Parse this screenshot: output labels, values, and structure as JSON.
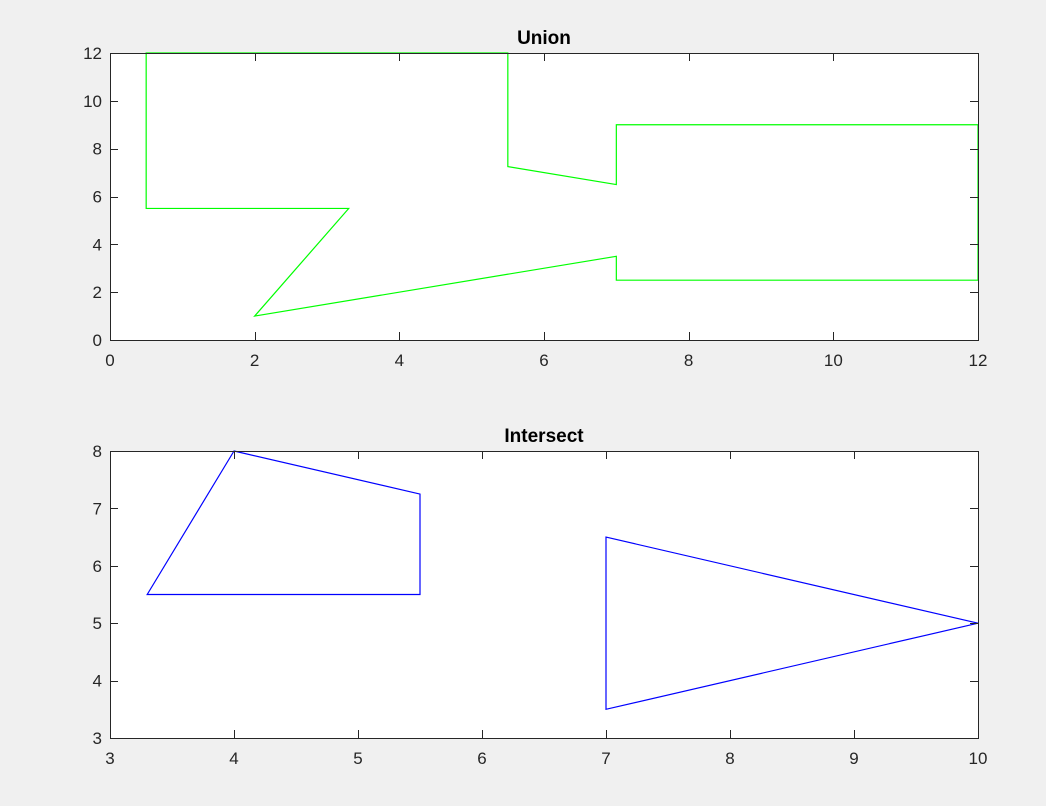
{
  "figure": {
    "background": "#f0f0f0"
  },
  "chart_data": [
    {
      "type": "line",
      "title": "Union",
      "xlabel": "",
      "ylabel": "",
      "xlim": [
        0,
        12
      ],
      "ylim": [
        0,
        12
      ],
      "xticks": [
        0,
        2,
        4,
        6,
        8,
        10,
        12
      ],
      "yticks": [
        0,
        2,
        4,
        6,
        8,
        10,
        12
      ],
      "grid": false,
      "series": [
        {
          "color": "#00ff00",
          "closed": true,
          "x": [
            0.5,
            5.5,
            5.5,
            7,
            7,
            12,
            12,
            7,
            7,
            2,
            3.3,
            0.5
          ],
          "y": [
            12,
            12,
            7.25,
            6.5,
            9,
            9,
            2.5,
            2.5,
            3.5,
            1,
            5.5,
            5.5
          ]
        }
      ]
    },
    {
      "type": "line",
      "title": "Intersect",
      "xlabel": "",
      "ylabel": "",
      "xlim": [
        3,
        10
      ],
      "ylim": [
        3,
        8
      ],
      "xticks": [
        3,
        4,
        5,
        6,
        7,
        8,
        9,
        10
      ],
      "yticks": [
        3,
        4,
        5,
        6,
        7,
        8
      ],
      "grid": false,
      "series": [
        {
          "color": "#0000ff",
          "closed": true,
          "x": [
            4,
            5.5,
            5.5,
            3.3
          ],
          "y": [
            8,
            7.25,
            5.5,
            5.5
          ]
        },
        {
          "color": "#0000ff",
          "closed": true,
          "x": [
            7,
            10,
            7
          ],
          "y": [
            6.5,
            5,
            3.5
          ]
        }
      ]
    }
  ]
}
